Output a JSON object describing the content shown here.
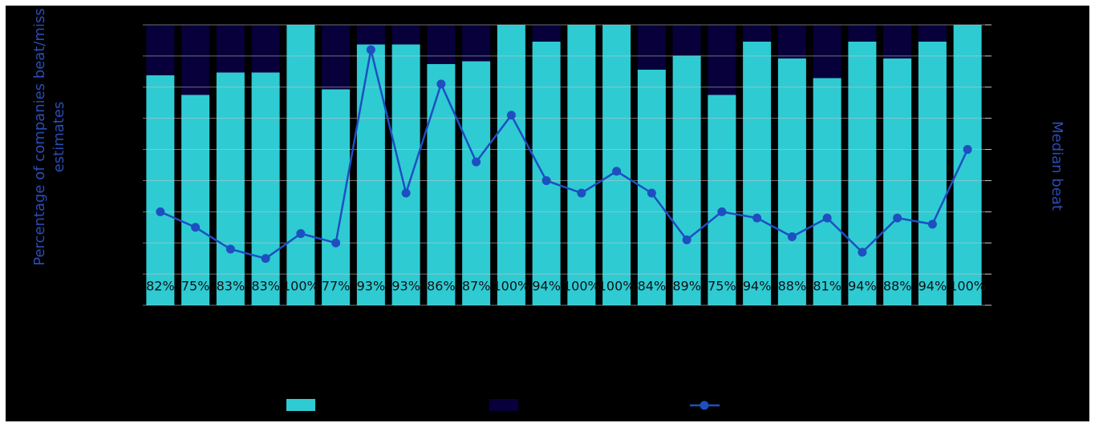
{
  "chart_data": {
    "type": "bar",
    "stacked": true,
    "y_label": "Percentage of companies beat/miss estimates",
    "y2_label": "Median beat",
    "ylim": [
      0,
      100
    ],
    "y2lim": [
      0,
      9
    ],
    "y2ticks": [
      0,
      1,
      2,
      3,
      4,
      5,
      6,
      7,
      8,
      9
    ],
    "grid": true,
    "series": [
      {
        "type": "bar",
        "color": "#2ecbd3",
        "values": [
          82,
          75,
          83,
          83,
          100,
          77,
          93,
          93,
          86,
          87,
          100,
          94,
          100,
          100,
          84,
          89,
          75,
          94,
          88,
          81,
          94,
          88,
          94,
          100
        ],
        "value_labels": [
          "82%",
          "75%",
          "83%",
          "83%",
          "100%",
          "77%",
          "93%",
          "93%",
          "86%",
          "87%",
          "100%",
          "94%",
          "100%",
          "100%",
          "84%",
          "89%",
          "75%",
          "94%",
          "88%",
          "81%",
          "94%",
          "88%",
          "94%",
          "100%"
        ]
      },
      {
        "type": "bar",
        "color": "#07003a",
        "values": [
          18,
          25,
          17,
          17,
          0,
          23,
          7,
          7,
          14,
          13,
          0,
          6,
          0,
          0,
          16,
          11,
          25,
          6,
          12,
          19,
          6,
          12,
          6,
          0
        ]
      },
      {
        "type": "line",
        "axis": "y2",
        "color": "#1d4fc0",
        "values": [
          3.0,
          2.5,
          1.8,
          1.5,
          2.3,
          2.0,
          8.2,
          3.6,
          7.1,
          4.6,
          6.1,
          4.0,
          3.6,
          4.3,
          3.6,
          2.1,
          3.0,
          2.8,
          2.2,
          2.8,
          1.7,
          2.8,
          2.6,
          5.0
        ]
      }
    ]
  }
}
